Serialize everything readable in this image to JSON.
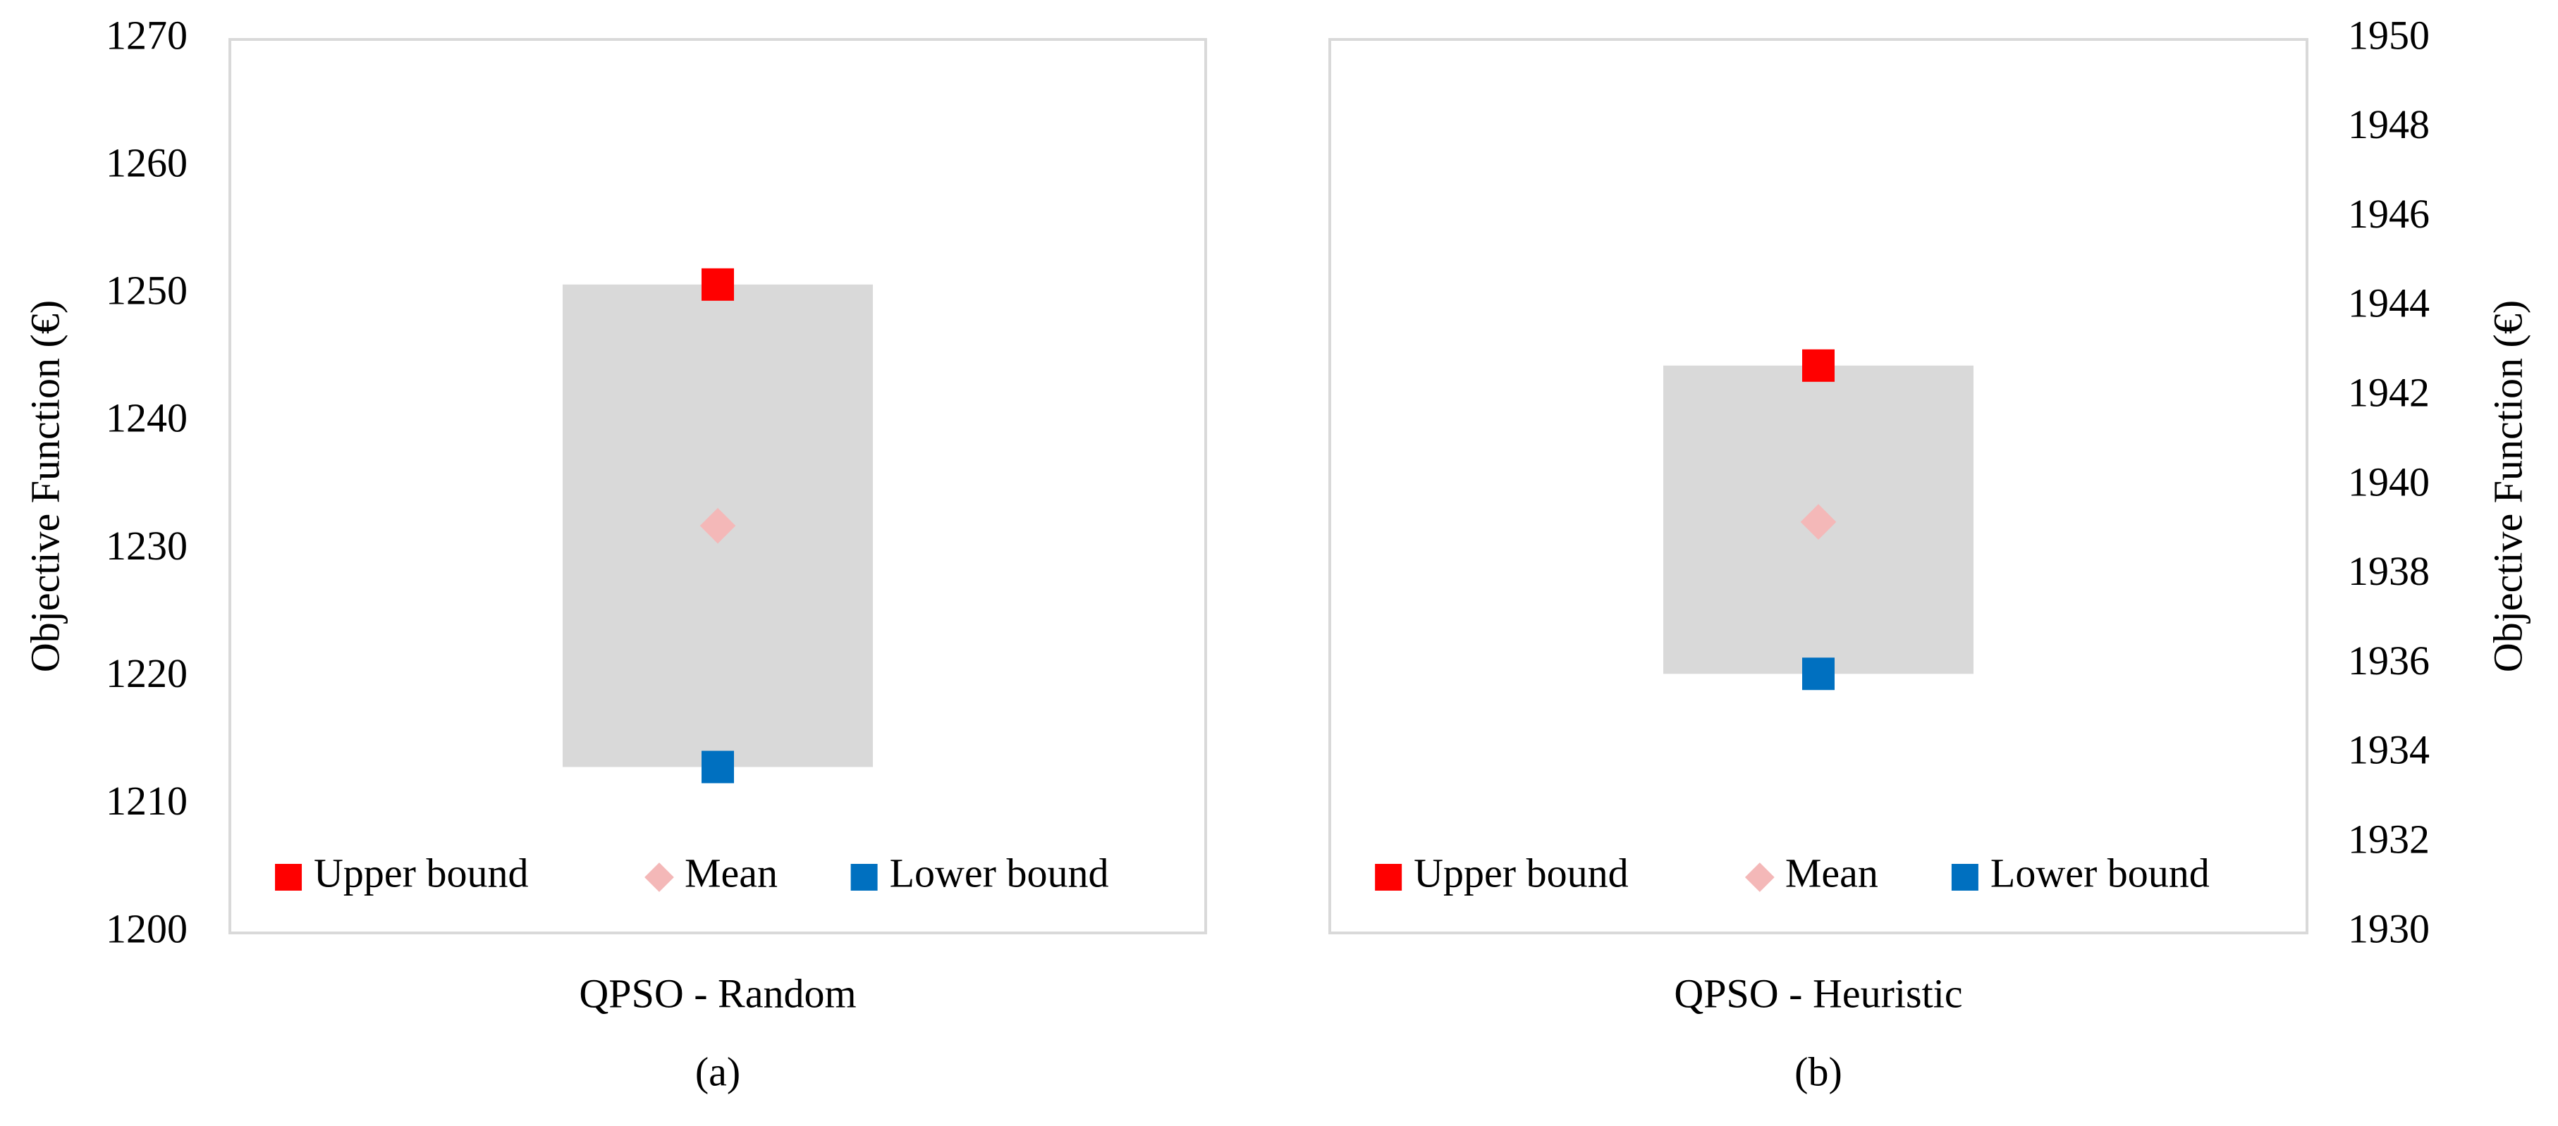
{
  "chart_data": [
    {
      "type": "range",
      "caption": "(a)",
      "categories": [
        "QPSO - Random"
      ],
      "ylabel": "Objective Function (€)",
      "y_axis_side": "left",
      "ylim": [
        1200,
        1270
      ],
      "yticks": [
        1200,
        1210,
        1220,
        1230,
        1240,
        1250,
        1260,
        1270
      ],
      "range_color": "#d9d9d9",
      "legend": "bottom",
      "series": [
        {
          "name": "Upper bound",
          "color": "#ff0000",
          "marker": "square",
          "values": [
            1250.8
          ]
        },
        {
          "name": "Mean",
          "color": "#f4b8b8",
          "marker": "diamond",
          "values": [
            1231.9
          ]
        },
        {
          "name": "Lower bound",
          "color": "#0070c0",
          "marker": "square",
          "values": [
            1213
          ]
        }
      ]
    },
    {
      "type": "range",
      "caption": "(b)",
      "categories": [
        "QPSO - Heuristic"
      ],
      "ylabel": "Objective Function (€)",
      "y_axis_side": "right",
      "ylim": [
        1930,
        1950
      ],
      "yticks": [
        1930,
        1932,
        1934,
        1936,
        1938,
        1940,
        1942,
        1944,
        1946,
        1948,
        1950
      ],
      "range_color": "#d9d9d9",
      "legend": "bottom",
      "series": [
        {
          "name": "Upper bound",
          "color": "#ff0000",
          "marker": "square",
          "values": [
            1942.7
          ]
        },
        {
          "name": "Mean",
          "color": "#f4b8b8",
          "marker": "diamond",
          "values": [
            1939.2
          ]
        },
        {
          "name": "Lower bound",
          "color": "#0070c0",
          "marker": "square",
          "values": [
            1935.8
          ]
        }
      ]
    }
  ]
}
